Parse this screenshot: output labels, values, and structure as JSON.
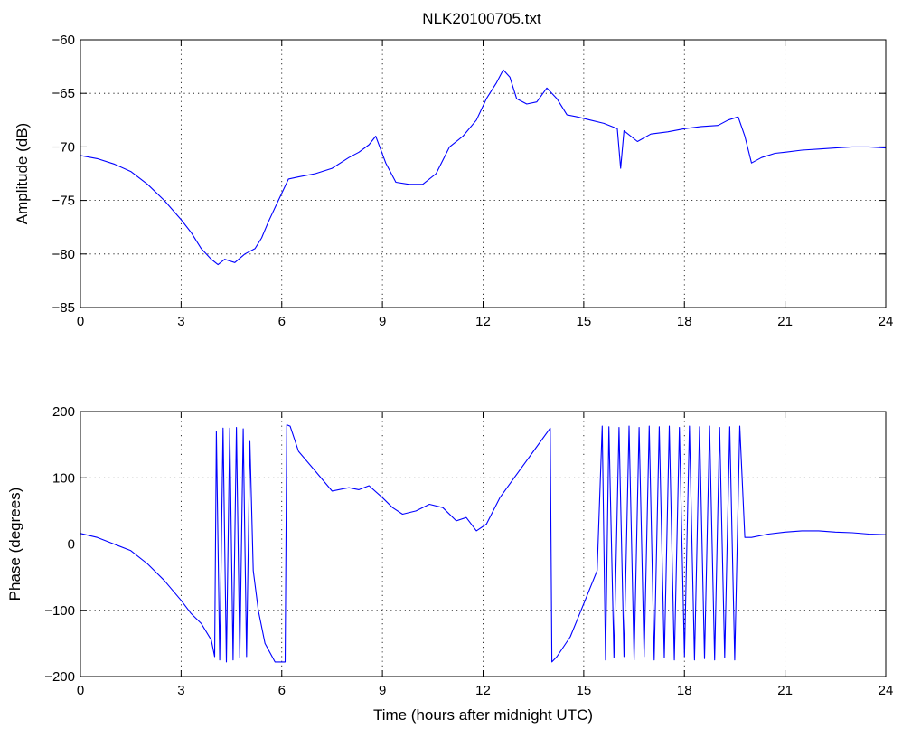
{
  "figure": {
    "title": "NLK20100705.txt",
    "line_color": "#0000ff"
  },
  "chart_data": [
    {
      "type": "line",
      "title": "NLK20100705.txt",
      "xlabel": "",
      "ylabel": "Amplitude (dB)",
      "xlim": [
        0,
        24
      ],
      "ylim": [
        -85,
        -60
      ],
      "xticks": [
        0,
        3,
        6,
        9,
        12,
        15,
        18,
        21,
        24
      ],
      "yticks": [
        -60,
        -65,
        -70,
        -75,
        -80,
        -85
      ],
      "xtick_labels": [
        "0",
        "3",
        "6",
        "9",
        "12",
        "15",
        "18",
        "21",
        "24"
      ],
      "ytick_labels": [
        "−60",
        "−65",
        "−70",
        "−75",
        "−80",
        "−85"
      ],
      "grid": true,
      "series": [
        {
          "x": [
            0,
            0.5,
            1,
            1.5,
            2,
            2.5,
            3,
            3.3,
            3.6,
            3.9,
            4.1,
            4.3,
            4.6,
            4.9,
            5.2,
            5.4,
            5.6,
            5.9,
            6.2,
            6.5,
            7,
            7.5,
            8,
            8.3,
            8.6,
            8.8,
            9.1,
            9.4,
            9.8,
            10.2,
            10.6,
            11,
            11.4,
            11.8,
            12.1,
            12.4,
            12.6,
            12.8,
            13.0,
            13.3,
            13.6,
            13.9,
            14.2,
            14.5,
            14.8,
            15.2,
            15.6,
            16.0,
            16.1,
            16.2,
            16.6,
            17.0,
            17.5,
            18.0,
            18.5,
            19.0,
            19.3,
            19.6,
            19.8,
            20.0,
            20.3,
            20.7,
            21,
            21.5,
            22,
            22.5,
            23,
            23.5,
            24
          ],
          "y": [
            -70.8,
            -71.1,
            -71.6,
            -72.3,
            -73.5,
            -75.0,
            -76.8,
            -78.0,
            -79.5,
            -80.5,
            -81.0,
            -80.5,
            -80.8,
            -80.0,
            -79.5,
            -78.5,
            -77.0,
            -75.0,
            -73.0,
            -72.8,
            -72.5,
            -72.0,
            -71.0,
            -70.5,
            -69.8,
            -69.0,
            -71.5,
            -73.3,
            -73.5,
            -73.5,
            -72.5,
            -70.0,
            -69.0,
            -67.5,
            -65.5,
            -64.0,
            -62.8,
            -63.5,
            -65.5,
            -66.0,
            -65.8,
            -64.5,
            -65.5,
            -67.0,
            -67.2,
            -67.5,
            -67.8,
            -68.3,
            -72.0,
            -68.5,
            -69.5,
            -68.8,
            -68.6,
            -68.3,
            -68.1,
            -68.0,
            -67.5,
            -67.2,
            -69.0,
            -71.5,
            -71.0,
            -70.6,
            -70.5,
            -70.3,
            -70.2,
            -70.1,
            -70.0,
            -70.0,
            -70.1
          ]
        }
      ]
    },
    {
      "type": "line",
      "title": "",
      "xlabel": "Time (hours after midnight UTC)",
      "ylabel": "Phase (degrees)",
      "xlim": [
        0,
        24
      ],
      "ylim": [
        -200,
        200
      ],
      "xticks": [
        0,
        3,
        6,
        9,
        12,
        15,
        18,
        21,
        24
      ],
      "yticks": [
        200,
        100,
        0,
        -100,
        -200
      ],
      "xtick_labels": [
        "0",
        "3",
        "6",
        "9",
        "12",
        "15",
        "18",
        "21",
        "24"
      ],
      "ytick_labels": [
        "200",
        "100",
        "0",
        "−100",
        "−200"
      ],
      "grid": true,
      "series": [
        {
          "x": [
            0,
            0.5,
            1,
            1.5,
            2,
            2.5,
            3,
            3.3,
            3.6,
            3.9,
            4.0,
            4.05,
            4.15,
            4.25,
            4.35,
            4.45,
            4.55,
            4.65,
            4.75,
            4.85,
            4.95,
            5.05,
            5.15,
            5.3,
            5.5,
            5.8,
            6.1,
            6.15,
            6.25,
            6.5,
            7,
            7.5,
            8,
            8.3,
            8.6,
            9.0,
            9.3,
            9.6,
            10,
            10.4,
            10.8,
            11.2,
            11.5,
            11.8,
            12.1,
            12.5,
            13,
            13.5,
            14.0,
            14.05,
            14.2,
            14.6,
            15,
            15.4,
            15.55,
            15.65,
            15.75,
            15.9,
            16.05,
            16.2,
            16.35,
            16.5,
            16.65,
            16.8,
            16.95,
            17.1,
            17.25,
            17.4,
            17.55,
            17.7,
            17.85,
            18.0,
            18.15,
            18.3,
            18.45,
            18.6,
            18.75,
            18.9,
            19.05,
            19.2,
            19.35,
            19.5,
            19.65,
            19.8,
            20.0,
            20.5,
            21,
            21.5,
            22,
            22.5,
            23,
            23.5,
            24
          ],
          "y": [
            16,
            10,
            0,
            -10,
            -30,
            -55,
            -85,
            -105,
            -120,
            -145,
            -170,
            170,
            -175,
            175,
            -178,
            175,
            -175,
            176,
            -172,
            174,
            -170,
            155,
            -40,
            -100,
            -150,
            -178,
            -178,
            180,
            178,
            140,
            110,
            80,
            85,
            82,
            88,
            70,
            55,
            45,
            50,
            60,
            55,
            35,
            40,
            20,
            30,
            70,
            105,
            140,
            175,
            -178,
            -170,
            -140,
            -90,
            -40,
            178,
            -175,
            177,
            -172,
            176,
            -170,
            178,
            -175,
            176,
            -170,
            178,
            -175,
            177,
            -172,
            178,
            -175,
            176,
            -170,
            178,
            -175,
            177,
            -173,
            178,
            -175,
            176,
            -172,
            177,
            -175,
            178,
            10,
            10,
            15,
            18,
            20,
            20,
            18,
            17,
            15,
            14
          ]
        }
      ]
    }
  ]
}
